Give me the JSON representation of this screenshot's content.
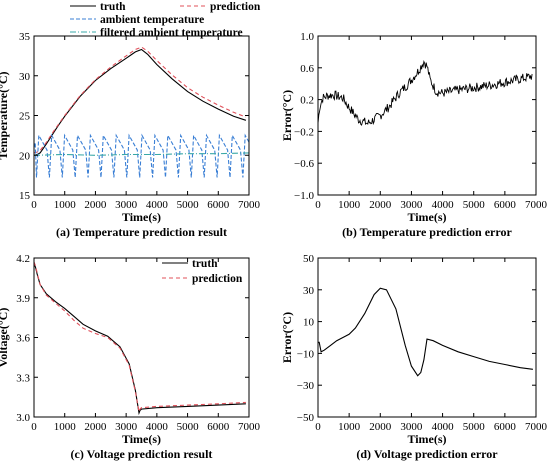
{
  "chart_data": [
    {
      "type": "line",
      "caption": "(a) Temperature prediction result",
      "xlabel": "Time(s)",
      "ylabel": "Temperature(°C)",
      "xlim": [
        0,
        7000
      ],
      "ylim": [
        15,
        35
      ],
      "xticks": [
        "0",
        "1000",
        "2000",
        "3000",
        "4000",
        "5000",
        "6000",
        "7000"
      ],
      "yticks": [
        "15",
        "20",
        "25",
        "30",
        "35"
      ],
      "legend": "top-right",
      "series": [
        {
          "name": "truth",
          "color": "#000000",
          "dash": "solid",
          "x": [
            0,
            100,
            200,
            400,
            600,
            800,
            1000,
            1500,
            2000,
            2500,
            3000,
            3300,
            3500,
            3700,
            4000,
            4500,
            5000,
            5500,
            6000,
            6500,
            6900
          ],
          "y": [
            20.0,
            20.1,
            20.3,
            21.4,
            22.6,
            23.8,
            24.9,
            27.4,
            29.4,
            30.9,
            32.2,
            33.0,
            33.3,
            32.7,
            31.4,
            29.6,
            28.0,
            26.8,
            25.8,
            24.9,
            24.4
          ]
        },
        {
          "name": "prediction",
          "color": "#e0505a",
          "dash": "4,3",
          "x": [
            0,
            100,
            200,
            400,
            600,
            800,
            1000,
            1500,
            2000,
            2500,
            3000,
            3300,
            3500,
            3700,
            4000,
            4500,
            5000,
            5500,
            6000,
            6500,
            6900
          ],
          "y": [
            20.3,
            20.4,
            20.6,
            21.6,
            22.8,
            23.9,
            25.0,
            27.5,
            29.5,
            31.1,
            32.5,
            33.3,
            33.6,
            33.1,
            31.9,
            30.1,
            28.5,
            27.3,
            26.3,
            25.4,
            24.8
          ]
        },
        {
          "name": "ambient temperature",
          "color": "#3a7fd5",
          "dash": "4,2",
          "sawtooth": {
            "period": 420,
            "phase": 80,
            "high": 22.5,
            "low": 17.2
          }
        },
        {
          "name": "filtered ambient temperature",
          "color": "#3aa8a8",
          "dash": "6,2,1,2",
          "x": [
            0,
            1000,
            2000,
            3000,
            4000,
            5000,
            6000,
            7000
          ],
          "y": [
            20.0,
            20.1,
            20.0,
            20.1,
            20.1,
            20.2,
            20.2,
            20.3
          ]
        }
      ]
    },
    {
      "type": "line",
      "caption": "(b) Temperature prediction error",
      "xlabel": "Time(s)",
      "ylabel": "Error(°C)",
      "xlim": [
        0,
        7000
      ],
      "ylim": [
        -1.0,
        1.0
      ],
      "xticks": [
        "0",
        "1000",
        "2000",
        "3000",
        "4000",
        "5000",
        "6000",
        "7000"
      ],
      "yticks": [
        "−1.0",
        "−0.6",
        "−0.2",
        "0.2",
        "0.6",
        "1.0"
      ],
      "series": [
        {
          "color": "#000000",
          "dash": "solid",
          "x": [
            0,
            50,
            150,
            300,
            500,
            800,
            1000,
            1300,
            1600,
            1800,
            2000,
            2300,
            2600,
            2900,
            3200,
            3400,
            3500,
            3600,
            3800,
            4000,
            4500,
            5000,
            5500,
            6000,
            6500,
            6900
          ],
          "y": [
            -0.1,
            0.1,
            0.22,
            0.25,
            0.26,
            0.22,
            0.1,
            -0.05,
            -0.1,
            -0.05,
            0.0,
            0.12,
            0.28,
            0.4,
            0.55,
            0.68,
            0.62,
            0.45,
            0.3,
            0.28,
            0.32,
            0.35,
            0.38,
            0.42,
            0.46,
            0.5
          ],
          "noise": 0.06
        }
      ]
    },
    {
      "type": "line",
      "caption": "(c) Voltage prediction result",
      "xlabel": "Time(s)",
      "ylabel": "Voltage(°C)",
      "xlim": [
        0,
        7000
      ],
      "ylim": [
        3.0,
        4.2
      ],
      "xticks": [
        "0",
        "1000",
        "2000",
        "3000",
        "4000",
        "5000",
        "6000",
        "7000"
      ],
      "yticks": [
        "3.0",
        "3.3",
        "3.6",
        "3.9",
        "4.2"
      ],
      "legend": "top-right",
      "series": [
        {
          "name": "truth",
          "color": "#000000",
          "dash": "solid",
          "x": [
            0,
            50,
            100,
            200,
            400,
            700,
            1000,
            1300,
            1600,
            2000,
            2400,
            2800,
            3100,
            3300,
            3420,
            3450,
            3500,
            4000,
            5000,
            6000,
            6900
          ],
          "y": [
            4.16,
            4.13,
            4.08,
            4.0,
            3.93,
            3.87,
            3.82,
            3.76,
            3.7,
            3.65,
            3.61,
            3.53,
            3.4,
            3.2,
            3.03,
            3.05,
            3.06,
            3.07,
            3.08,
            3.09,
            3.1
          ]
        },
        {
          "name": "prediction",
          "color": "#e0505a",
          "dash": "4,3",
          "x": [
            0,
            50,
            100,
            200,
            400,
            700,
            1000,
            1300,
            1600,
            2000,
            2400,
            2800,
            3100,
            3300,
            3420,
            3450,
            3500,
            4000,
            5000,
            6000,
            6900
          ],
          "y": [
            4.17,
            4.14,
            4.09,
            4.0,
            3.92,
            3.86,
            3.8,
            3.73,
            3.67,
            3.63,
            3.6,
            3.52,
            3.39,
            3.19,
            3.04,
            3.06,
            3.07,
            3.08,
            3.09,
            3.1,
            3.11
          ]
        }
      ]
    },
    {
      "type": "line",
      "caption": "(d) Voltage prediction error",
      "xlabel": "Time(s)",
      "ylabel": "Error(°C)",
      "xlim": [
        0,
        7000
      ],
      "ylim": [
        -50,
        50
      ],
      "xticks": [
        "0",
        "1000",
        "2000",
        "3000",
        "4000",
        "5000",
        "6000",
        "7000"
      ],
      "yticks": [
        "−50",
        "−30",
        "−10",
        "10",
        "30",
        "50"
      ],
      "series": [
        {
          "color": "#000000",
          "dash": "solid",
          "x": [
            0,
            40,
            100,
            200,
            400,
            600,
            800,
            1000,
            1200,
            1500,
            1800,
            2000,
            2200,
            2500,
            2800,
            3000,
            3200,
            3300,
            3400,
            3500,
            3700,
            4000,
            4500,
            5000,
            5500,
            6000,
            6500,
            6900
          ],
          "y": [
            -3,
            -3,
            -9,
            -8,
            -5,
            -2,
            0,
            2,
            6,
            15,
            27,
            31,
            30,
            18,
            -5,
            -18,
            -24,
            -22,
            -14,
            -1,
            -2,
            -5,
            -9,
            -12,
            -15,
            -17,
            -19,
            -20
          ]
        }
      ]
    }
  ]
}
